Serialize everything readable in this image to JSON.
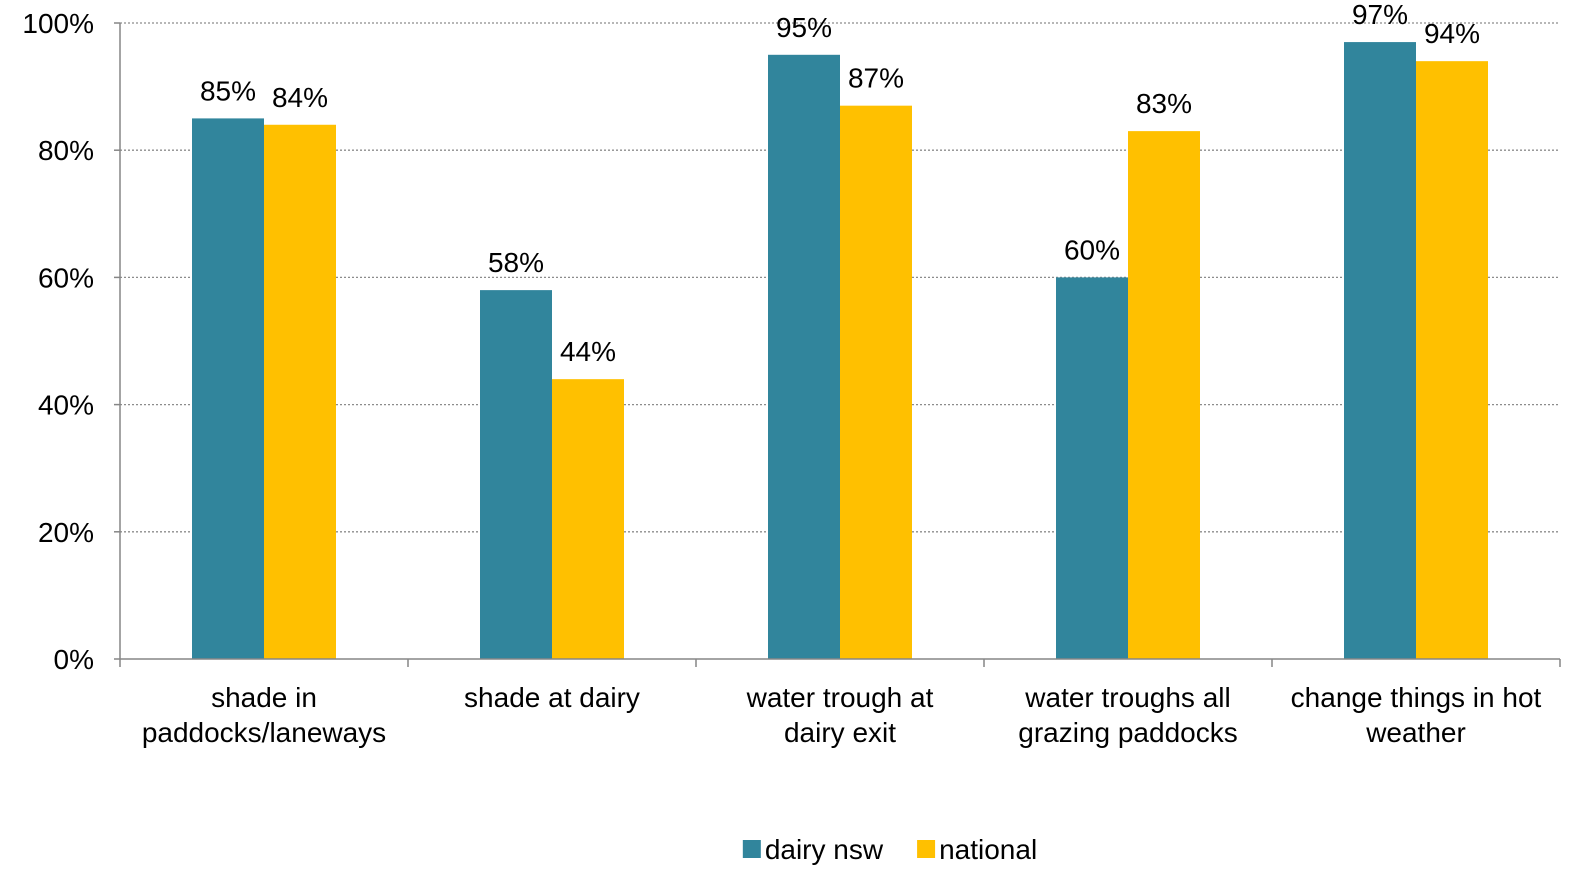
{
  "chart_data": {
    "type": "bar",
    "title": "",
    "xlabel": "",
    "ylabel": "",
    "ylim": [
      0,
      100
    ],
    "y_ticks": [
      0,
      20,
      40,
      60,
      80,
      100
    ],
    "y_tick_format": "percent",
    "grid": "horizontal dotted",
    "legend_position": "bottom",
    "categories": [
      [
        "shade in",
        "paddocks/laneways"
      ],
      [
        "shade at dairy"
      ],
      [
        "water trough at",
        "dairy exit"
      ],
      [
        "water troughs all",
        "grazing paddocks"
      ],
      [
        "change things in hot",
        "weather"
      ]
    ],
    "series": [
      {
        "name": "dairy nsw",
        "color": "#31859c",
        "values": [
          85,
          58,
          95,
          60,
          97
        ]
      },
      {
        "name": "national",
        "color": "#ffc000",
        "values": [
          84,
          44,
          87,
          83,
          94
        ]
      }
    ]
  }
}
